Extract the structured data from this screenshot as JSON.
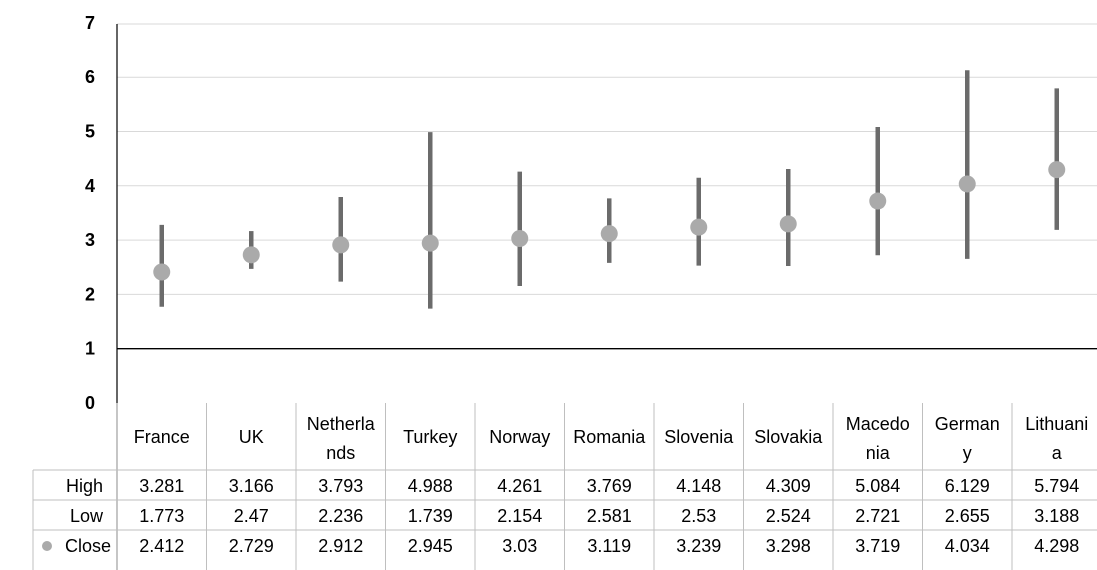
{
  "chart_data": {
    "type": "scatter",
    "title": "",
    "xlabel": "",
    "ylabel": "",
    "ylim": [
      0,
      7
    ],
    "yticks": [
      "0",
      "1",
      "2",
      "3",
      "4",
      "5",
      "6",
      "7"
    ],
    "grid": true,
    "categories": [
      [
        "France"
      ],
      [
        "UK"
      ],
      [
        "Netherla",
        "nds"
      ],
      [
        "Turkey"
      ],
      [
        "Norway"
      ],
      [
        "Romania"
      ],
      [
        "Slovenia"
      ],
      [
        "Slovakia"
      ],
      [
        "Macedo",
        "nia"
      ],
      [
        "German",
        "y"
      ],
      [
        "Lithuani",
        "a"
      ]
    ],
    "series": [
      {
        "name": "High",
        "values": [
          3.281,
          3.166,
          3.793,
          4.988,
          4.261,
          3.769,
          4.148,
          4.309,
          5.084,
          6.129,
          5.794
        ]
      },
      {
        "name": "Low",
        "values": [
          1.773,
          2.47,
          2.236,
          1.739,
          2.154,
          2.581,
          2.53,
          2.524,
          2.721,
          2.655,
          3.188
        ]
      },
      {
        "name": "Close",
        "values": [
          2.412,
          2.729,
          2.912,
          2.945,
          3.03,
          3.119,
          3.239,
          3.298,
          3.719,
          4.034,
          4.298
        ]
      }
    ],
    "table_values": {
      "High": [
        "3.281",
        "3.166",
        "3.793",
        "4.988",
        "4.261",
        "3.769",
        "4.148",
        "4.309",
        "5.084",
        "6.129",
        "5.794"
      ],
      "Low": [
        "1.773",
        "2.47",
        "2.236",
        "1.739",
        "2.154",
        "2.581",
        "2.53",
        "2.524",
        "2.721",
        "2.655",
        "3.188"
      ],
      "Close": [
        "2.412",
        "2.729",
        "2.912",
        "2.945",
        "3.03",
        "3.119",
        "3.239",
        "3.298",
        "3.719",
        "4.034",
        "4.298"
      ]
    },
    "colors": {
      "range_line": "#6b6b6b",
      "close_marker": "#aaaaaa",
      "gridline": "#d9d9d9",
      "axis": "#000000",
      "table_border": "#bfbfbf"
    }
  }
}
